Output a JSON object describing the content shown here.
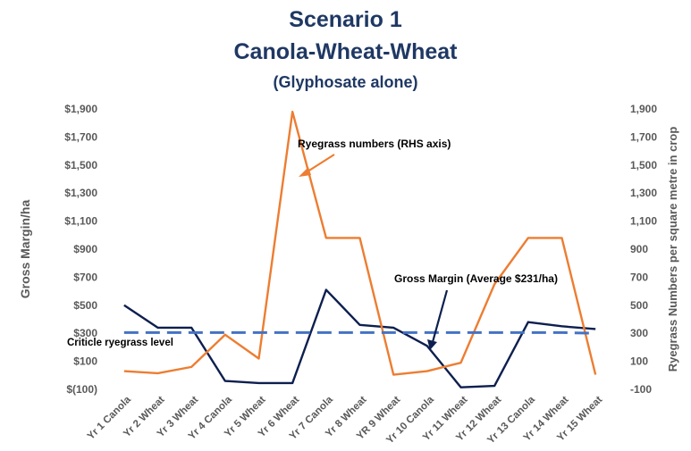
{
  "chart_data": {
    "type": "line",
    "title": [
      "Scenario 1",
      "Canola-Wheat-Wheat",
      "(Glyphosate alone)"
    ],
    "ylabel_left": "Gross Margin/ha",
    "ylabel_right": "Ryegrass Numbers per square metre in crop",
    "ylim_left": [
      -100,
      1900
    ],
    "ylim_right": [
      -100,
      1900
    ],
    "yticks_left": [
      "$(100)",
      "$100",
      "$300",
      "$500",
      "$700",
      "$900",
      "$1,100",
      "$1,300",
      "$1,500",
      "$1,700",
      "$1,900"
    ],
    "yticks_right": [
      "-100",
      "100",
      "300",
      "500",
      "700",
      "900",
      "1,100",
      "1,300",
      "1,500",
      "1,700",
      "1,900"
    ],
    "ytick_values": [
      -100,
      100,
      300,
      500,
      700,
      900,
      1100,
      1300,
      1500,
      1700,
      1900
    ],
    "categories": [
      "Yr 1  Canola",
      "Yr 2 Wheat",
      "Yr 3 Wheat",
      "Yr 4 Canola",
      "Yr 5 Wheat",
      "Yr 6 Wheat",
      "Yr 7 Canola",
      "Yr 8 Wheat",
      "YR 9  Wheat",
      "Yr 10 Canola",
      "Yr 11 Wheat",
      "Yr 12 Wheat",
      "Yr 13 Canola",
      "Yr 14 Wheat",
      "Yr 15 Wheat"
    ],
    "series": [
      {
        "name": "Gross Margin",
        "axis": "left",
        "color": "#0d1f4f",
        "dashed": false,
        "values": [
          500,
          340,
          340,
          -40,
          -55,
          -55,
          610,
          360,
          340,
          210,
          -85,
          -75,
          380,
          350,
          330
        ]
      },
      {
        "name": "Ryegrass numbers",
        "axis": "right",
        "color": "#ed7d31",
        "dashed": false,
        "values": [
          30,
          15,
          60,
          290,
          120,
          1880,
          980,
          980,
          5,
          30,
          90,
          650,
          980,
          980,
          5
        ]
      },
      {
        "name": "Criticle ryegrass level",
        "axis": "right",
        "color": "#4472c4",
        "dashed": true,
        "values": [
          305,
          305,
          305,
          305,
          305,
          305,
          305,
          305,
          305,
          305,
          305,
          305,
          305,
          305,
          300
        ]
      }
    ],
    "annotations": [
      {
        "text": "Ryegrass numbers (RHS axis)",
        "target_series": "Ryegrass numbers"
      },
      {
        "text": "Gross Margin (Average $231/ha)",
        "target_series": "Gross Margin"
      },
      {
        "text": "Criticle ryegrass level",
        "target_series": "Criticle ryegrass level"
      }
    ],
    "grid": false,
    "legend": "none"
  }
}
